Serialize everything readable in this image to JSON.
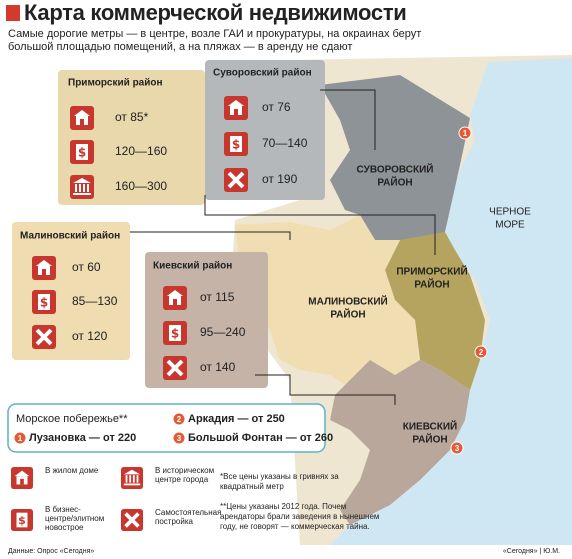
{
  "header": {
    "title": "Карта коммерческой недвижимости",
    "subtitle": "Самые дорогие метры — в центре, возле ГАИ и прокуратуры, на окраинах берут большой площадью помещений, а на пляжах — в аренду не сдают"
  },
  "districts": [
    {
      "name": "Приморский район",
      "prices": [
        "от 85*",
        "120—160",
        "160—300"
      ]
    },
    {
      "name": "Суворовский район",
      "prices": [
        "от 76",
        "70—140",
        "от 190"
      ]
    },
    {
      "name": "Малиновский район",
      "prices": [
        "от 60",
        "85—130",
        "от 120"
      ]
    },
    {
      "name": "Киевский район",
      "prices": [
        "от 115",
        "95—240",
        "от 140"
      ]
    }
  ],
  "map_labels": [
    {
      "lines": [
        "СУВОРОВСКИЙ",
        "РАЙОН"
      ]
    },
    {
      "lines": [
        "ЧЕРНОЕ",
        "МОРЕ"
      ]
    },
    {
      "lines": [
        "ПРИМОРСКИЙ",
        "РАЙОН"
      ]
    },
    {
      "lines": [
        "МАЛИНОВСКИЙ",
        "РАЙОН"
      ]
    },
    {
      "lines": [
        "КИЕВСКИЙ",
        "РАЙОН"
      ]
    }
  ],
  "coast": {
    "title": "Морское побережье**",
    "items": [
      {
        "num": "1",
        "text": "Лузановка — от 220"
      },
      {
        "num": "2",
        "text": "Аркадия — от 250"
      },
      {
        "num": "3",
        "text": "Большой Фонтан — от 260"
      }
    ]
  },
  "legend": [
    "В жилом доме",
    "В историческом центре города",
    "В бизнес-центре/элитном новострое",
    "Самостоятельная постройка"
  ],
  "notes": [
    "*Все цены указаны в гривнях за квадратный метр",
    "**Цены указаны 2012 года. Почем арендаторы брали заведения в нынешнем году, не говорят — коммерческая тайна."
  ],
  "footer": {
    "source": "Данные: Опрос «Сегодня»",
    "credit": "«Сегодня» | Ю.М."
  }
}
